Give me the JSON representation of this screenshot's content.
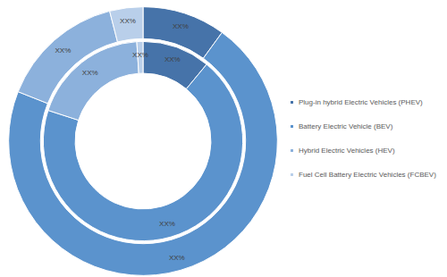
{
  "chart_data": {
    "type": "pie",
    "categories": [
      "Plug-in hybrid Electric Vehicles (PHEV)",
      "Battery Electric Vehicle (BEV)",
      "Hybrid Electric Vehicles (HEV)",
      "Fuel Cell Battery Electric Vehicles (FCBEV)"
    ],
    "series": [
      {
        "values": [
          10,
          71,
          15,
          4
        ],
        "value_labels": [
          "XX%",
          "XX%",
          "XX%",
          "XX%"
        ]
      },
      {
        "values": [
          11,
          69,
          19,
          1
        ],
        "value_labels": [
          "XX%",
          "XX%",
          "XX%",
          "XX%"
        ]
      }
    ],
    "colors": [
      "#4673a9",
      "#5b93cd",
      "#8cb1dc",
      "#b9cfea"
    ],
    "data_labels": true,
    "legend": "right"
  }
}
